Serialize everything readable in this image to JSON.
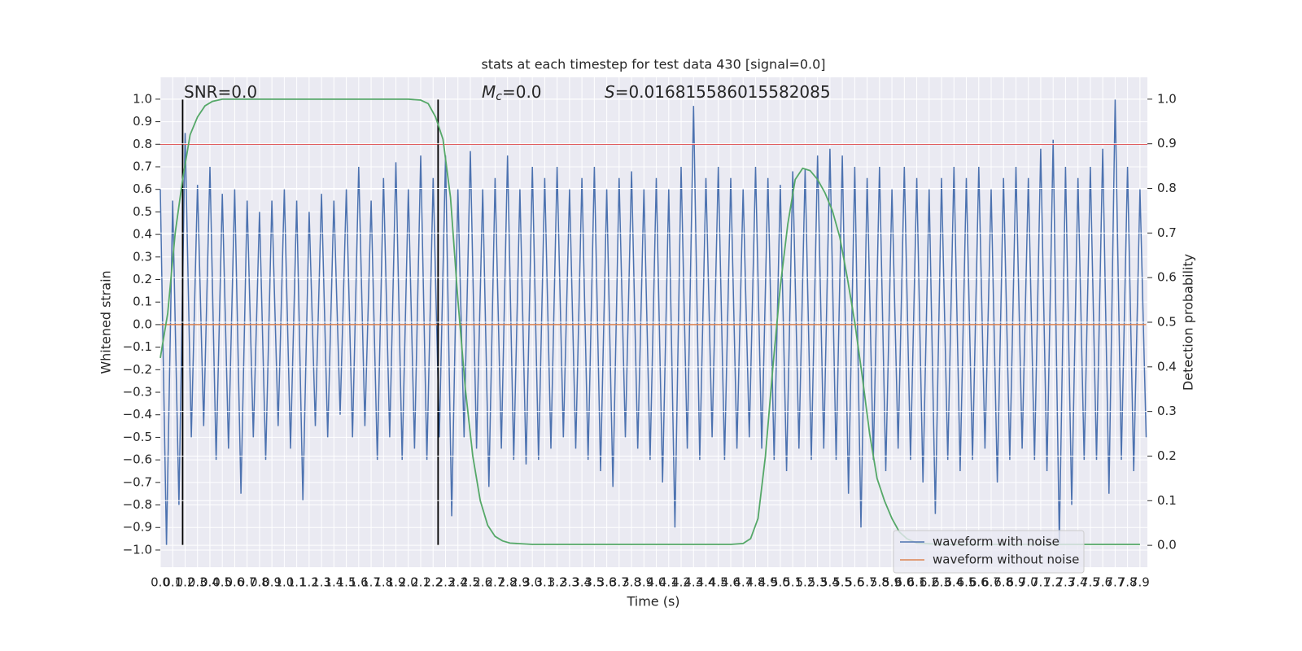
{
  "chart_data": {
    "type": "line",
    "title": "stats at each timestep for test data 430 [signal=0.0]",
    "xlabel": "Time (s)",
    "ylabel": "Whitened strain",
    "y2label": "Detection probability",
    "xlim": [
      0,
      7.96
    ],
    "ylim": [
      -1.076,
      1.097
    ],
    "y2lim": [
      -0.049,
      1.049
    ],
    "xticks": [
      {
        "value": 0,
        "label": "0.0"
      },
      0.1,
      0.2,
      0.3,
      0.4,
      0.5,
      0.6,
      0.7,
      0.8,
      0.9,
      {
        "value": 1,
        "label": "1.0"
      },
      1.1,
      1.2,
      1.3,
      1.4,
      1.5,
      1.6,
      1.7,
      1.8,
      1.9,
      {
        "value": 2,
        "label": "2.0"
      },
      2.1,
      2.2,
      2.3,
      2.4,
      2.5,
      2.6,
      2.7,
      2.8,
      2.9,
      {
        "value": 3,
        "label": "3.0"
      },
      3.1,
      3.2,
      3.3,
      3.4,
      3.5,
      3.6,
      3.7,
      3.8,
      3.9,
      {
        "value": 4,
        "label": "4.0"
      },
      4.1,
      4.2,
      4.3,
      4.4,
      4.5,
      4.6,
      4.7,
      4.8,
      4.9,
      {
        "value": 5,
        "label": "5.0"
      },
      5.1,
      5.2,
      5.3,
      5.4,
      5.5,
      5.6,
      5.7,
      5.8,
      5.9,
      {
        "value": 6,
        "label": "6.0"
      },
      6.1,
      6.2,
      6.3,
      6.4,
      6.5,
      6.6,
      6.7,
      6.8,
      6.9,
      {
        "value": 7,
        "label": "7.0"
      },
      7.1,
      7.2,
      7.3,
      7.4,
      7.5,
      7.6,
      7.7,
      7.8,
      7.9
    ],
    "yticks": [
      {
        "value": -1,
        "label": "−1.0"
      },
      {
        "value": -0.9,
        "label": "−0.9"
      },
      {
        "value": -0.8,
        "label": "−0.8"
      },
      {
        "value": -0.7,
        "label": "−0.7"
      },
      {
        "value": -0.6,
        "label": "−0.6"
      },
      {
        "value": -0.5,
        "label": "−0.5"
      },
      {
        "value": -0.4,
        "label": "−0.4"
      },
      {
        "value": -0.3,
        "label": "−0.3"
      },
      {
        "value": -0.2,
        "label": "−0.2"
      },
      {
        "value": -0.1,
        "label": "−0.1"
      },
      {
        "value": 0,
        "label": "0.0"
      },
      0.1,
      0.2,
      0.3,
      0.4,
      0.5,
      0.6,
      0.7,
      0.8,
      0.9,
      {
        "value": 1,
        "label": "1.0"
      }
    ],
    "y2ticks": [
      {
        "value": 0,
        "label": "0.0"
      },
      0.1,
      0.2,
      0.3,
      0.4,
      0.5,
      0.6,
      0.7,
      0.8,
      0.9,
      {
        "value": 1,
        "label": "1.0"
      }
    ],
    "grid": true,
    "legend": "lower right",
    "series": [
      {
        "name": "waveform with noise",
        "color": "#4c72b0",
        "x": [
          0,
          0.05,
          0.1,
          0.15,
          0.2,
          0.25,
          0.3,
          0.35,
          0.4,
          0.45,
          0.5,
          0.55,
          0.6,
          0.65,
          0.7,
          0.75,
          0.8,
          0.85,
          0.9,
          0.95,
          1,
          1.05,
          1.1,
          1.15,
          1.2,
          1.25,
          1.3,
          1.35,
          1.4,
          1.45,
          1.5,
          1.55,
          1.6,
          1.65,
          1.7,
          1.75,
          1.8,
          1.85,
          1.9,
          1.95,
          2,
          2.05,
          2.1,
          2.15,
          2.2,
          2.25,
          2.3,
          2.35,
          2.4,
          2.45,
          2.5,
          2.55,
          2.6,
          2.65,
          2.7,
          2.75,
          2.8,
          2.85,
          2.9,
          2.95,
          3,
          3.05,
          3.1,
          3.15,
          3.2,
          3.25,
          3.3,
          3.35,
          3.4,
          3.45,
          3.5,
          3.55,
          3.6,
          3.65,
          3.7,
          3.75,
          3.8,
          3.85,
          3.9,
          3.95,
          4,
          4.05,
          4.1,
          4.15,
          4.2,
          4.25,
          4.3,
          4.35,
          4.4,
          4.45,
          4.5,
          4.55,
          4.6,
          4.65,
          4.7,
          4.75,
          4.8,
          4.85,
          4.9,
          4.95,
          5,
          5.05,
          5.1,
          5.15,
          5.2,
          5.25,
          5.3,
          5.35,
          5.4,
          5.45,
          5.5,
          5.55,
          5.6,
          5.65,
          5.7,
          5.75,
          5.8,
          5.85,
          5.9,
          5.95,
          6,
          6.05,
          6.1,
          6.15,
          6.2,
          6.25,
          6.3,
          6.35,
          6.4,
          6.45,
          6.5,
          6.55,
          6.6,
          6.65,
          6.7,
          6.75,
          6.8,
          6.85,
          6.9,
          6.95,
          7,
          7.05,
          7.1,
          7.15,
          7.2,
          7.25,
          7.3,
          7.35,
          7.4,
          7.45,
          7.5,
          7.55,
          7.6,
          7.65,
          7.7,
          7.75,
          7.8,
          7.85,
          7.9,
          7.95
        ],
        "values": [
          0.6,
          -0.98,
          0.55,
          -0.8,
          0.85,
          -0.5,
          0.62,
          -0.45,
          0.7,
          -0.6,
          0.58,
          -0.55,
          0.6,
          -0.75,
          0.55,
          -0.5,
          0.5,
          -0.6,
          0.55,
          -0.45,
          0.6,
          -0.55,
          0.55,
          -0.78,
          0.5,
          -0.45,
          0.58,
          -0.5,
          0.55,
          -0.4,
          0.6,
          -0.5,
          0.7,
          -0.45,
          0.55,
          -0.6,
          0.65,
          -0.5,
          0.72,
          -0.6,
          0.6,
          -0.55,
          0.75,
          -0.6,
          0.65,
          -0.5,
          0.75,
          -0.85,
          0.6,
          -0.5,
          0.77,
          -0.55,
          0.6,
          -0.72,
          0.65,
          -0.55,
          0.75,
          -0.6,
          0.6,
          -0.62,
          0.7,
          -0.6,
          0.65,
          -0.55,
          0.7,
          -0.5,
          0.6,
          -0.55,
          0.65,
          -0.6,
          0.7,
          -0.65,
          0.6,
          -0.72,
          0.65,
          -0.5,
          0.68,
          -0.55,
          0.6,
          -0.6,
          0.65,
          -0.7,
          0.6,
          -0.9,
          0.7,
          -0.55,
          0.97,
          -0.6,
          0.65,
          -0.5,
          0.7,
          -0.6,
          0.65,
          -0.55,
          0.6,
          -0.5,
          0.7,
          -0.55,
          0.65,
          -0.6,
          0.62,
          -0.65,
          0.68,
          -0.55,
          0.69,
          -0.6,
          0.75,
          -0.55,
          0.78,
          -0.6,
          0.75,
          -0.75,
          0.7,
          -0.9,
          0.65,
          -0.6,
          0.7,
          -0.65,
          0.6,
          -0.55,
          0.7,
          -0.6,
          0.65,
          -0.7,
          0.6,
          -0.84,
          0.65,
          -0.6,
          0.7,
          -0.65,
          0.65,
          -0.6,
          0.7,
          -0.55,
          0.6,
          -0.7,
          0.65,
          -0.6,
          0.7,
          -0.55,
          0.65,
          -0.6,
          0.78,
          -0.65,
          0.82,
          -0.97,
          0.7,
          -0.8,
          0.65,
          -0.6,
          0.7,
          -0.6,
          0.78,
          -0.75,
          1.0,
          -0.6,
          0.7,
          -0.65,
          0.6,
          -0.5
        ]
      },
      {
        "name": "waveform without noise",
        "color": "#dd8452",
        "x": [
          0,
          7.95
        ],
        "values": [
          0.0,
          0.0
        ]
      },
      {
        "color": "#55a868",
        "axis": "y2",
        "x": [
          0,
          0.06,
          0.12,
          0.18,
          0.24,
          0.3,
          0.36,
          0.42,
          0.5,
          2.0,
          2.1,
          2.16,
          2.22,
          2.28,
          2.34,
          2.4,
          2.46,
          2.52,
          2.58,
          2.64,
          2.7,
          2.76,
          2.82,
          3.0,
          4.6,
          4.7,
          4.76,
          4.82,
          4.88,
          4.94,
          5.0,
          5.06,
          5.12,
          5.18,
          5.24,
          5.3,
          5.36,
          5.42,
          5.48,
          5.54,
          5.6,
          5.66,
          5.72,
          5.78,
          5.84,
          5.9,
          5.96,
          6.02,
          6.1,
          6.3,
          7.9
        ],
        "values": [
          0.42,
          0.52,
          0.7,
          0.82,
          0.92,
          0.96,
          0.985,
          0.995,
          1.0,
          1.0,
          0.998,
          0.99,
          0.96,
          0.91,
          0.78,
          0.55,
          0.35,
          0.2,
          0.1,
          0.045,
          0.02,
          0.01,
          0.005,
          0.002,
          0.002,
          0.004,
          0.015,
          0.06,
          0.2,
          0.4,
          0.58,
          0.72,
          0.82,
          0.845,
          0.84,
          0.82,
          0.79,
          0.75,
          0.69,
          0.6,
          0.5,
          0.38,
          0.25,
          0.15,
          0.1,
          0.06,
          0.03,
          0.015,
          0.005,
          0.002,
          0.002
        ]
      }
    ],
    "hlines": [
      {
        "y": 0.8,
        "color": "#d62728"
      }
    ],
    "vlines": [
      {
        "x": 0.18,
        "ymin": -0.98,
        "ymax": 1.0,
        "color": "#000000"
      },
      {
        "x": 2.24,
        "ymin": -0.98,
        "ymax": 1.0,
        "color": "#000000"
      }
    ],
    "annotations": [
      {
        "text": "SNR=0.0"
      },
      {
        "symbol": "M",
        "subscript": "c",
        "text": "=0.0"
      },
      {
        "symbol": "S",
        "text": "=0.016815586015582085"
      }
    ]
  }
}
